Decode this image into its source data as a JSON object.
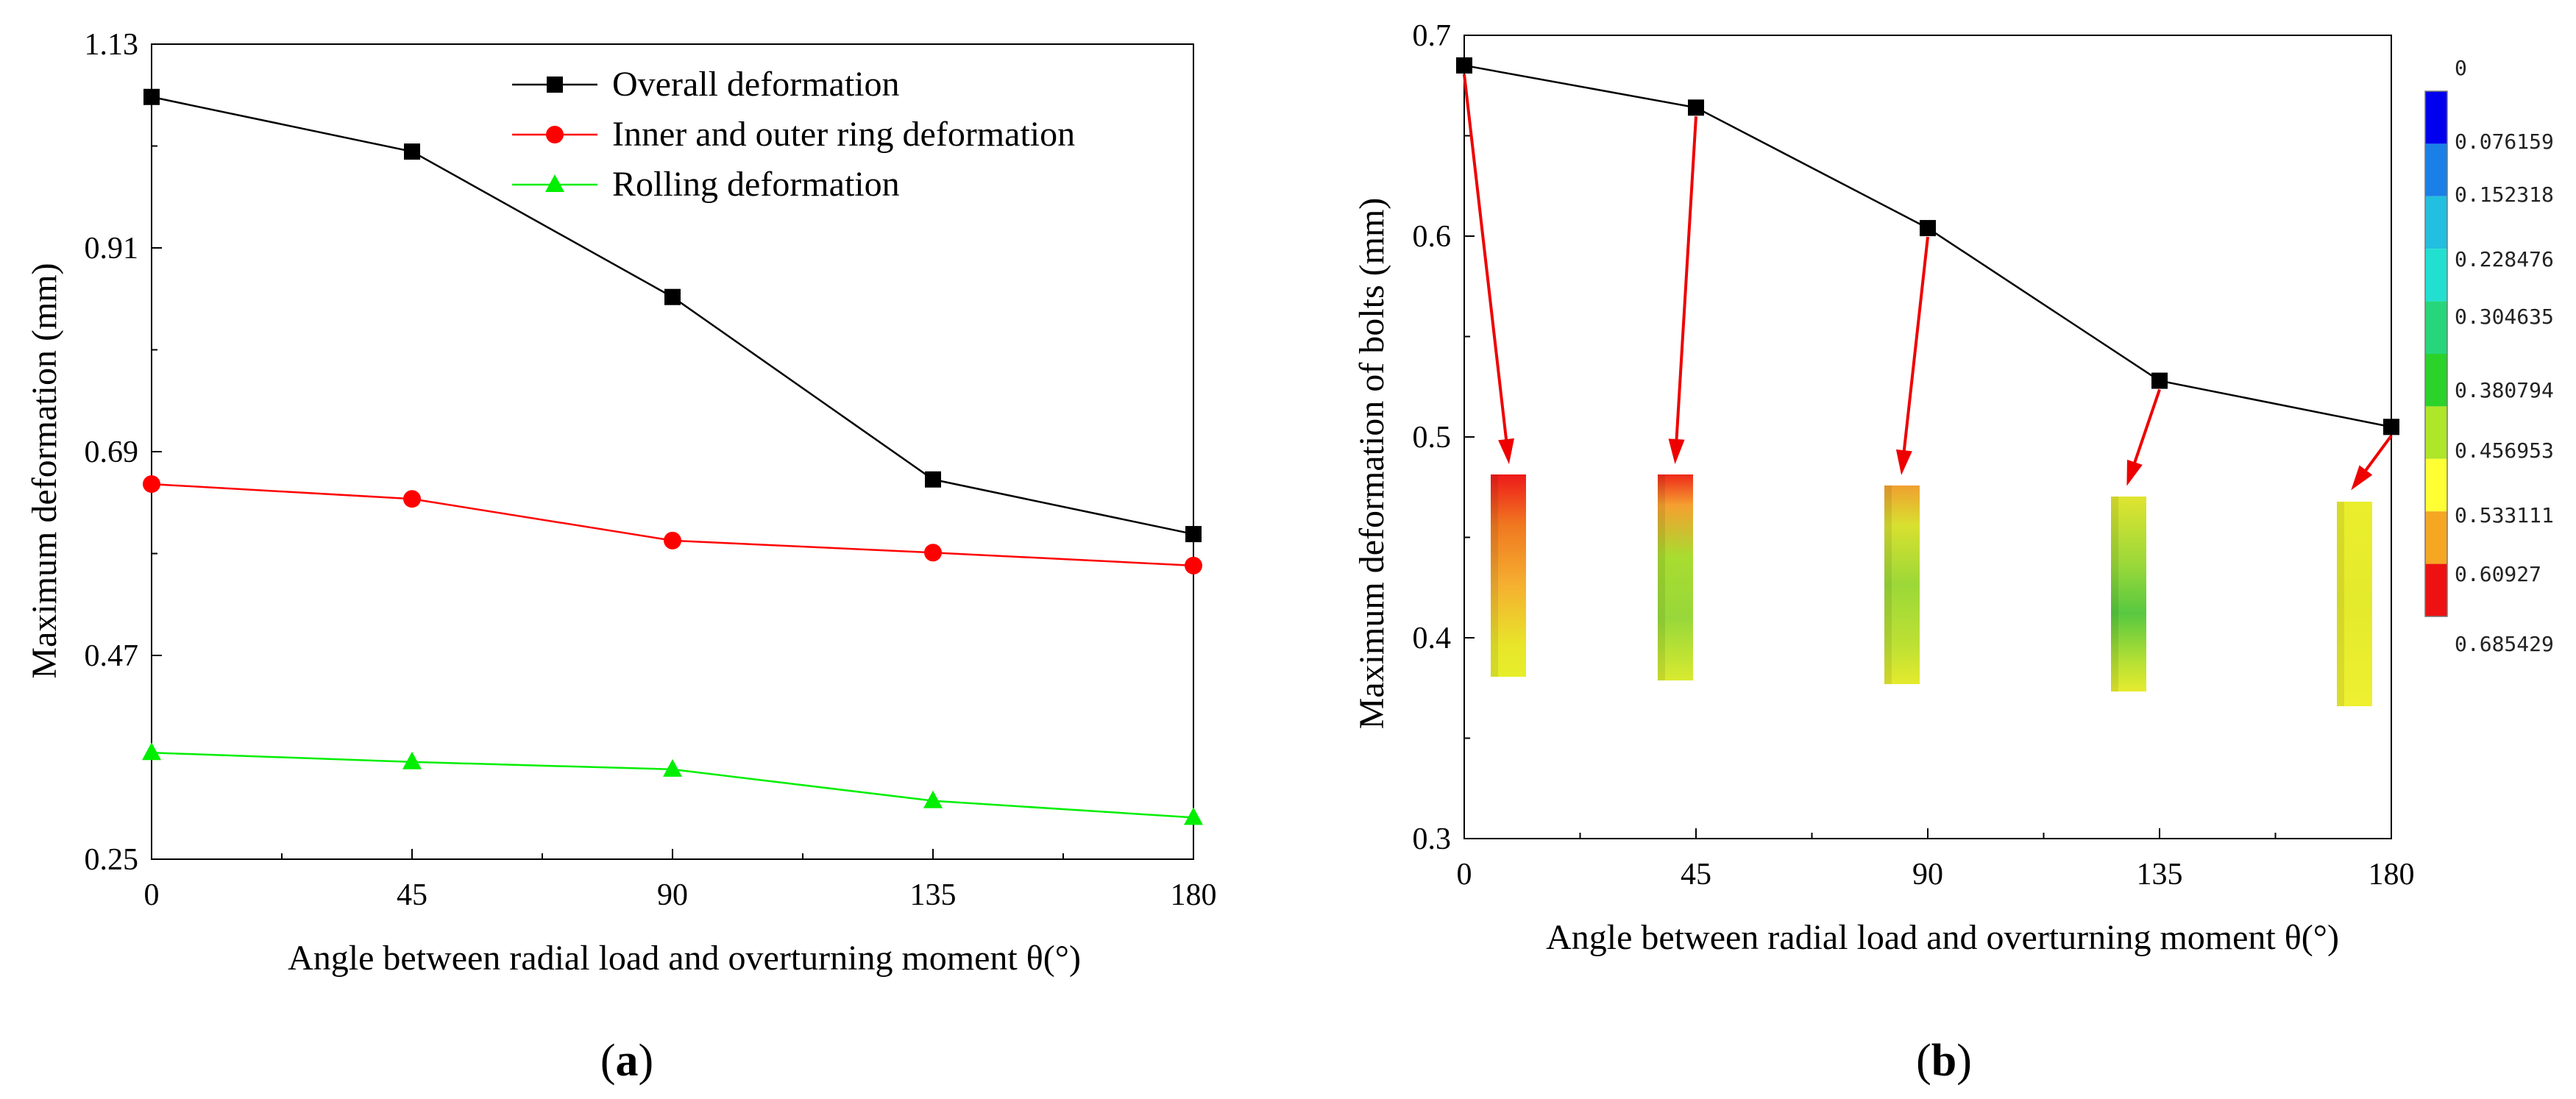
{
  "chart_data": [
    {
      "type": "line",
      "panel_label": "(a)",
      "panel_letter": "a",
      "xlabel": "Angle between radial load and overturning moment θ(°)",
      "ylabel": "Maximum deformation (mm)",
      "x": [
        0,
        45,
        90,
        135,
        180
      ],
      "xlim": [
        0,
        180
      ],
      "ylim": [
        0.25,
        1.13
      ],
      "xticks": [
        "0",
        "45",
        "90",
        "135",
        "180"
      ],
      "yticks": [
        "0.25",
        "0.47",
        "0.69",
        "0.91",
        "1.13"
      ],
      "legend_position": "top-center",
      "series": [
        {
          "name": "Overall deformation",
          "color": "#000000",
          "marker": "square",
          "values": [
            1.073,
            1.014,
            0.857,
            0.66,
            0.601
          ]
        },
        {
          "name": "Inner and outer ring deformation",
          "color": "#ff0000",
          "marker": "circle",
          "values": [
            0.655,
            0.639,
            0.594,
            0.581,
            0.567
          ]
        },
        {
          "name": "Rolling deformation",
          "color": "#00ee00",
          "marker": "triangle",
          "values": [
            0.365,
            0.355,
            0.347,
            0.313,
            0.295
          ]
        }
      ]
    },
    {
      "type": "line",
      "panel_label": "(b)",
      "panel_letter": "b",
      "xlabel": "Angle between radial load and overturning moment θ(°)",
      "ylabel": "Maximum deformation of bolts (mm)",
      "x": [
        0,
        45,
        90,
        135,
        180
      ],
      "xlim": [
        0,
        180
      ],
      "ylim": [
        0.3,
        0.7
      ],
      "xticks": [
        "0",
        "45",
        "90",
        "135",
        "180"
      ],
      "yticks": [
        "0.3",
        "0.4",
        "0.5",
        "0.6",
        "0.7"
      ],
      "series": [
        {
          "name": "Maximum deformation of bolts",
          "color": "#000000",
          "marker": "square",
          "values": [
            0.685,
            0.664,
            0.604,
            0.528,
            0.505
          ]
        }
      ],
      "bolt_contour_insets": 5,
      "colorbar": {
        "labels": [
          "0",
          "0.076159",
          "0.152318",
          "0.228476",
          "0.304635",
          "0.380794",
          "0.456953",
          "0.533111",
          "0.60927",
          "0.685429"
        ],
        "colors": [
          "#0000ee",
          "#1a7fe6",
          "#22bfe0",
          "#22e0d0",
          "#27d67a",
          "#2ad22a",
          "#aee62a",
          "#ffff33",
          "#f5a623",
          "#ee1111"
        ]
      }
    }
  ]
}
